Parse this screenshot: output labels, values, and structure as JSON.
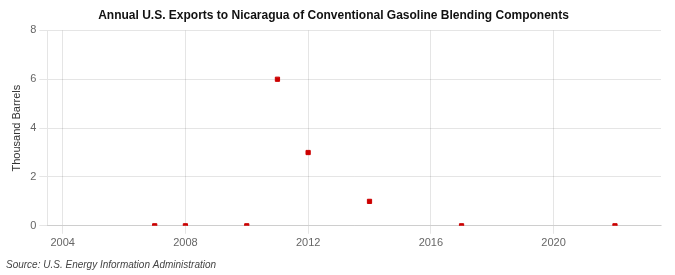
{
  "chart_data": {
    "type": "scatter",
    "title": "Annual U.S. Exports to Nicaragua of Conventional Gasoline Blending Components",
    "ylabel": "Thousand Barrels",
    "annotations": [
      "Source: U.S. Energy Information Administration"
    ],
    "x": [
      2007,
      2008,
      2010,
      2011,
      2012,
      2014,
      2017,
      2022
    ],
    "values": [
      0,
      0,
      0,
      6,
      3,
      1,
      0,
      0
    ],
    "color": "#cc0000",
    "marker": "square",
    "xlim": [
      2003.5,
      2023.5
    ],
    "ylim": [
      0,
      8
    ],
    "xticks": [
      2004,
      2008,
      2012,
      2016,
      2020
    ],
    "yticks": [
      0,
      2,
      4,
      6,
      8
    ],
    "grid": true
  }
}
